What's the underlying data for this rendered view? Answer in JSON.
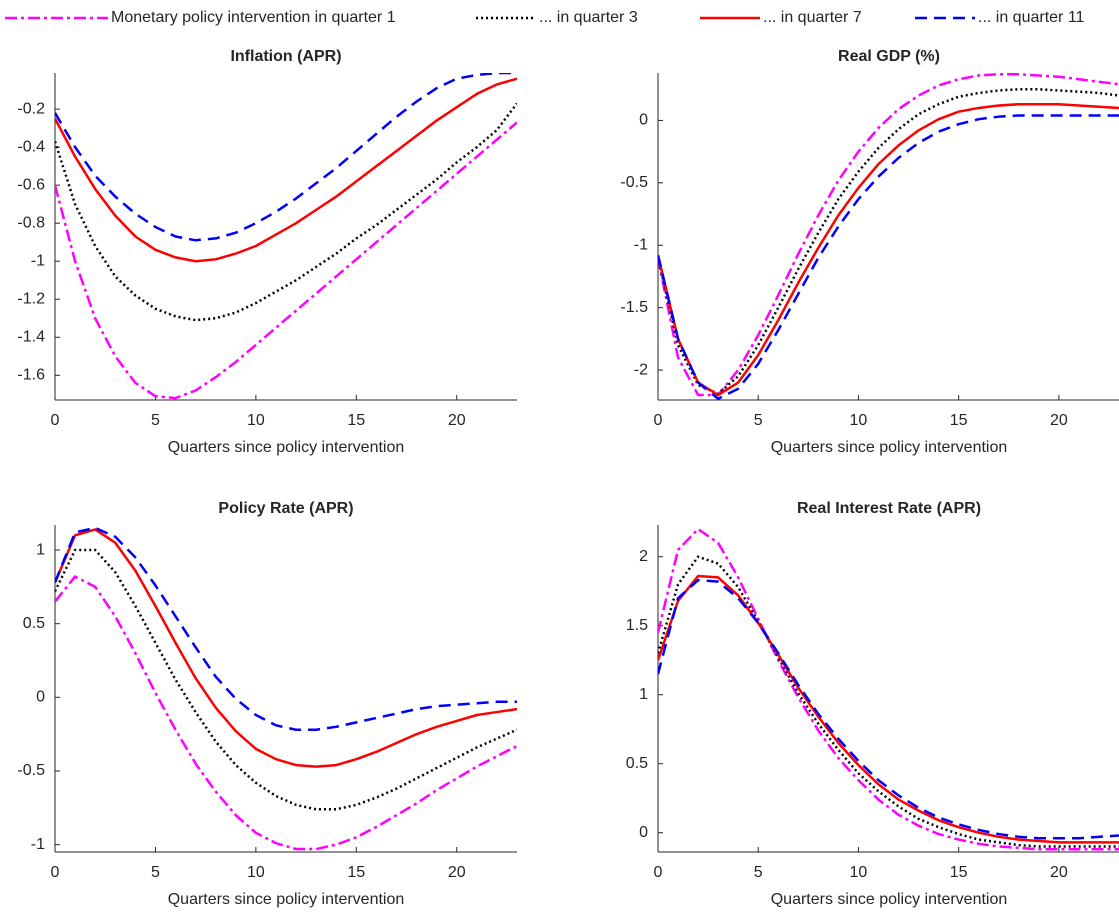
{
  "legend": {
    "position": "top",
    "entries": [
      {
        "name": "Monetary policy intervention in quarter 1",
        "color": "#ff00ff",
        "dash": "dash-dot"
      },
      {
        "name": "... in quarter 3",
        "color": "#000000",
        "dash": "dotted"
      },
      {
        "name": "... in quarter 7",
        "color": "#ff0000",
        "dash": "solid"
      },
      {
        "name": "... in quarter 11",
        "color": "#0000ff",
        "dash": "dashed"
      }
    ]
  },
  "chart_data": [
    {
      "type": "line",
      "title": "Inflation (APR)",
      "xlabel": "Quarters since policy intervention",
      "x": [
        0,
        1,
        2,
        3,
        4,
        5,
        6,
        7,
        8,
        9,
        10,
        11,
        12,
        13,
        14,
        15,
        16,
        17,
        18,
        19,
        20,
        21,
        22,
        23
      ],
      "xlim": [
        0,
        23
      ],
      "xticks": [
        0,
        5,
        10,
        15,
        20
      ],
      "ylim": [
        -1.73,
        -0.01
      ],
      "yticks": [
        -1.6,
        -1.4,
        -1.2,
        -1,
        -0.8,
        -0.6,
        -0.4,
        -0.2
      ],
      "series": [
        {
          "values": [
            -0.6,
            -1.0,
            -1.3,
            -1.5,
            -1.64,
            -1.71,
            -1.72,
            -1.68,
            -1.61,
            -1.53,
            -1.44,
            -1.35,
            -1.26,
            -1.17,
            -1.08,
            -0.99,
            -0.9,
            -0.81,
            -0.72,
            -0.63,
            -0.54,
            -0.45,
            -0.36,
            -0.27
          ]
        },
        {
          "values": [
            -0.37,
            -0.7,
            -0.92,
            -1.08,
            -1.18,
            -1.25,
            -1.29,
            -1.31,
            -1.3,
            -1.27,
            -1.22,
            -1.16,
            -1.1,
            -1.03,
            -0.96,
            -0.88,
            -0.81,
            -0.73,
            -0.65,
            -0.57,
            -0.48,
            -0.4,
            -0.31,
            -0.17
          ]
        },
        {
          "values": [
            -0.25,
            -0.45,
            -0.62,
            -0.76,
            -0.87,
            -0.94,
            -0.98,
            -1.0,
            -0.99,
            -0.96,
            -0.92,
            -0.86,
            -0.8,
            -0.73,
            -0.66,
            -0.58,
            -0.5,
            -0.42,
            -0.34,
            -0.26,
            -0.19,
            -0.12,
            -0.07,
            -0.04
          ]
        },
        {
          "values": [
            -0.22,
            -0.4,
            -0.55,
            -0.66,
            -0.75,
            -0.82,
            -0.87,
            -0.89,
            -0.88,
            -0.85,
            -0.8,
            -0.74,
            -0.67,
            -0.59,
            -0.51,
            -0.42,
            -0.33,
            -0.24,
            -0.16,
            -0.09,
            -0.04,
            -0.02,
            -0.01,
            -0.01
          ]
        }
      ]
    },
    {
      "type": "line",
      "title": "Real GDP (%)",
      "xlabel": "Quarters since policy intervention",
      "x": [
        0,
        1,
        2,
        3,
        4,
        5,
        6,
        7,
        8,
        9,
        10,
        11,
        12,
        13,
        14,
        15,
        16,
        17,
        18,
        19,
        20,
        21,
        22,
        23
      ],
      "xlim": [
        0,
        23
      ],
      "xticks": [
        0,
        5,
        10,
        15,
        20
      ],
      "ylim": [
        -2.24,
        0.38
      ],
      "yticks": [
        -2,
        -1.5,
        -1,
        -0.5,
        0
      ],
      "series": [
        {
          "values": [
            -1.1,
            -1.9,
            -2.2,
            -2.2,
            -2.0,
            -1.72,
            -1.4,
            -1.07,
            -0.76,
            -0.48,
            -0.25,
            -0.06,
            0.09,
            0.2,
            0.28,
            0.33,
            0.36,
            0.37,
            0.37,
            0.36,
            0.35,
            0.33,
            0.31,
            0.29
          ]
        },
        {
          "values": [
            -1.1,
            -1.8,
            -2.12,
            -2.19,
            -2.05,
            -1.8,
            -1.5,
            -1.19,
            -0.9,
            -0.63,
            -0.41,
            -0.22,
            -0.07,
            0.05,
            0.13,
            0.19,
            0.22,
            0.24,
            0.25,
            0.25,
            0.24,
            0.23,
            0.22,
            0.2
          ]
        },
        {
          "values": [
            -1.08,
            -1.75,
            -2.1,
            -2.2,
            -2.1,
            -1.88,
            -1.6,
            -1.3,
            -1.02,
            -0.76,
            -0.54,
            -0.35,
            -0.2,
            -0.08,
            0.01,
            0.07,
            0.1,
            0.12,
            0.13,
            0.13,
            0.13,
            0.12,
            0.11,
            0.1
          ]
        },
        {
          "values": [
            -1.08,
            -1.75,
            -2.1,
            -2.23,
            -2.15,
            -1.95,
            -1.68,
            -1.39,
            -1.1,
            -0.85,
            -0.63,
            -0.45,
            -0.3,
            -0.18,
            -0.09,
            -0.03,
            0.01,
            0.03,
            0.04,
            0.04,
            0.04,
            0.04,
            0.04,
            0.04
          ]
        }
      ]
    },
    {
      "type": "line",
      "title": "Policy Rate (APR)",
      "xlabel": "Quarters since policy intervention",
      "x": [
        0,
        1,
        2,
        3,
        4,
        5,
        6,
        7,
        8,
        9,
        10,
        11,
        12,
        13,
        14,
        15,
        16,
        17,
        18,
        19,
        20,
        21,
        22,
        23
      ],
      "xlim": [
        0,
        23
      ],
      "xticks": [
        0,
        5,
        10,
        15,
        20
      ],
      "ylim": [
        -1.05,
        1.17
      ],
      "yticks": [
        -1,
        -0.5,
        0,
        0.5,
        1
      ],
      "series": [
        {
          "values": [
            0.65,
            0.82,
            0.75,
            0.55,
            0.3,
            0.03,
            -0.22,
            -0.45,
            -0.64,
            -0.8,
            -0.92,
            -0.99,
            -1.03,
            -1.03,
            -1.0,
            -0.95,
            -0.88,
            -0.8,
            -0.72,
            -0.63,
            -0.55,
            -0.47,
            -0.4,
            -0.33
          ]
        },
        {
          "values": [
            0.72,
            1.0,
            1.0,
            0.85,
            0.62,
            0.37,
            0.12,
            -0.1,
            -0.3,
            -0.46,
            -0.58,
            -0.67,
            -0.73,
            -0.76,
            -0.76,
            -0.73,
            -0.68,
            -0.62,
            -0.55,
            -0.48,
            -0.41,
            -0.34,
            -0.28,
            -0.22
          ]
        },
        {
          "values": [
            0.78,
            1.1,
            1.14,
            1.05,
            0.86,
            0.62,
            0.37,
            0.13,
            -0.07,
            -0.23,
            -0.35,
            -0.42,
            -0.46,
            -0.47,
            -0.46,
            -0.42,
            -0.37,
            -0.31,
            -0.25,
            -0.2,
            -0.16,
            -0.12,
            -0.1,
            -0.08
          ]
        },
        {
          "values": [
            0.78,
            1.12,
            1.15,
            1.09,
            0.95,
            0.76,
            0.55,
            0.34,
            0.14,
            -0.01,
            -0.12,
            -0.19,
            -0.22,
            -0.22,
            -0.2,
            -0.17,
            -0.14,
            -0.11,
            -0.08,
            -0.06,
            -0.05,
            -0.04,
            -0.03,
            -0.03
          ]
        }
      ]
    },
    {
      "type": "line",
      "title": "Real Interest Rate (APR)",
      "xlabel": "Quarters since policy intervention",
      "x": [
        0,
        1,
        2,
        3,
        4,
        5,
        6,
        7,
        8,
        9,
        10,
        11,
        12,
        13,
        14,
        15,
        16,
        17,
        18,
        19,
        20,
        21,
        22,
        23
      ],
      "xlim": [
        0,
        23
      ],
      "xticks": [
        0,
        5,
        10,
        15,
        20
      ],
      "ylim": [
        -0.14,
        2.23
      ],
      "yticks": [
        0,
        0.5,
        1,
        1.5,
        2
      ],
      "series": [
        {
          "values": [
            1.45,
            2.05,
            2.2,
            2.1,
            1.85,
            1.55,
            1.25,
            0.98,
            0.74,
            0.54,
            0.38,
            0.24,
            0.13,
            0.05,
            -0.01,
            -0.05,
            -0.08,
            -0.1,
            -0.11,
            -0.12,
            -0.12,
            -0.12,
            -0.12,
            -0.12
          ]
        },
        {
          "values": [
            1.3,
            1.8,
            2.0,
            1.95,
            1.78,
            1.53,
            1.27,
            1.01,
            0.79,
            0.6,
            0.43,
            0.3,
            0.19,
            0.1,
            0.04,
            -0.01,
            -0.05,
            -0.07,
            -0.09,
            -0.1,
            -0.1,
            -0.1,
            -0.1,
            -0.1
          ]
        },
        {
          "values": [
            1.25,
            1.68,
            1.86,
            1.85,
            1.72,
            1.52,
            1.29,
            1.05,
            0.84,
            0.65,
            0.49,
            0.35,
            0.24,
            0.16,
            0.09,
            0.04,
            0.0,
            -0.03,
            -0.05,
            -0.06,
            -0.07,
            -0.07,
            -0.07,
            -0.07
          ]
        },
        {
          "values": [
            1.15,
            1.7,
            1.83,
            1.82,
            1.7,
            1.52,
            1.3,
            1.07,
            0.86,
            0.68,
            0.52,
            0.38,
            0.27,
            0.18,
            0.11,
            0.06,
            0.02,
            -0.01,
            -0.03,
            -0.04,
            -0.04,
            -0.04,
            -0.03,
            -0.02
          ]
        }
      ]
    }
  ]
}
